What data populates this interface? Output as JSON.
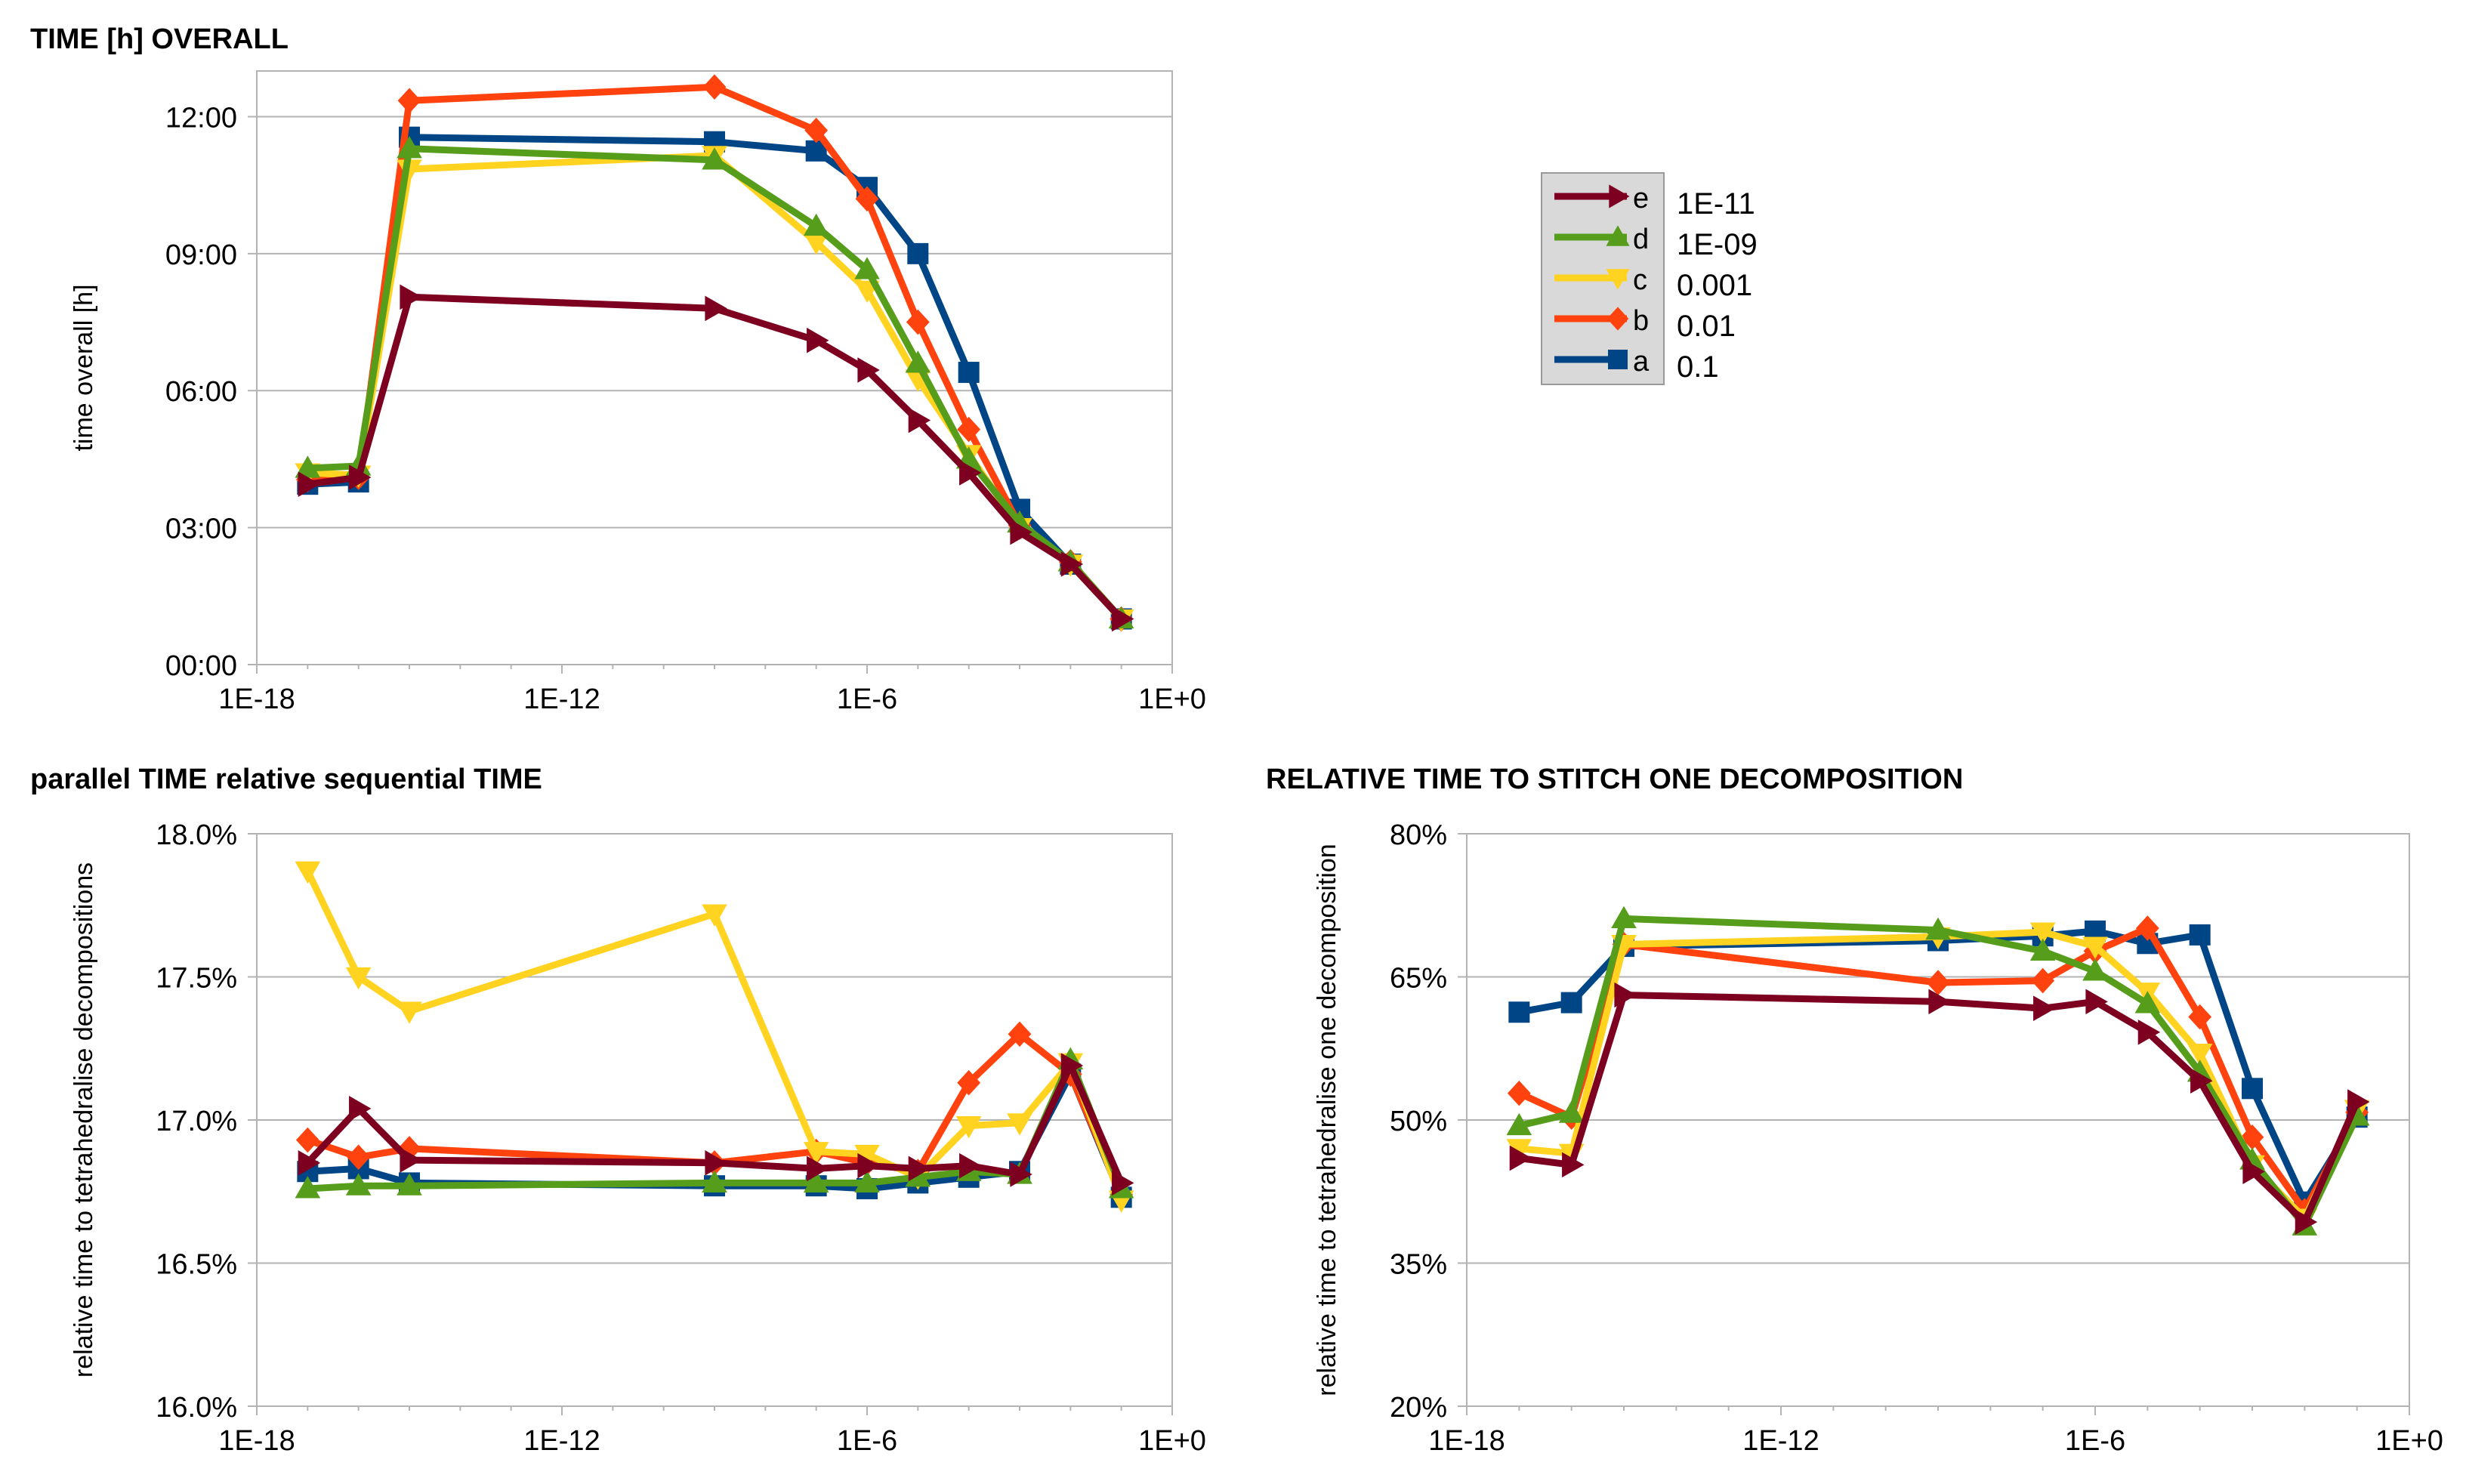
{
  "chart_data": [
    {
      "type": "line",
      "title": "TIME [h] OVERALL",
      "xlabel": "",
      "ylabel": "time overall [h]",
      "xscale": "log",
      "xlim": [
        1e-18,
        1
      ],
      "ylim": [
        0,
        13
      ],
      "xticks": [
        "1E-18",
        "1E-12",
        "1E-6",
        "1E+0"
      ],
      "yticks": [
        "00:00",
        "03:00",
        "06:00",
        "09:00",
        "12:00"
      ],
      "ytick_values": [
        0,
        3,
        6,
        9,
        12
      ],
      "series": [
        {
          "name": "a",
          "x": [
            1e-17,
            1e-16,
            1e-15,
            1e-09,
            1e-07,
            1e-06,
            1e-05,
            0.0001,
            0.001,
            0.01,
            0.1
          ],
          "values": [
            3.95,
            4.0,
            11.55,
            11.45,
            11.25,
            10.45,
            9.0,
            6.4,
            3.4,
            2.2,
            1.0
          ]
        },
        {
          "name": "b",
          "x": [
            1e-17,
            1e-16,
            1e-15,
            1e-09,
            1e-07,
            1e-06,
            1e-05,
            0.0001,
            0.001,
            0.01,
            0.1
          ],
          "values": [
            4.05,
            4.1,
            12.35,
            12.65,
            11.7,
            10.2,
            7.5,
            5.15,
            3.05,
            2.25,
            1.0
          ]
        },
        {
          "name": "c",
          "x": [
            1e-17,
            1e-16,
            1e-15,
            1e-09,
            1e-07,
            1e-06,
            1e-05,
            0.0001,
            0.001,
            0.01,
            0.1
          ],
          "values": [
            4.2,
            4.15,
            10.85,
            11.15,
            9.25,
            8.2,
            6.25,
            4.6,
            3.0,
            2.2,
            1.0
          ]
        },
        {
          "name": "d",
          "x": [
            1e-17,
            1e-16,
            1e-15,
            1e-09,
            1e-07,
            1e-06,
            1e-05,
            0.0001,
            0.001,
            0.01,
            0.1
          ],
          "values": [
            4.3,
            4.35,
            11.3,
            11.05,
            9.6,
            8.65,
            6.6,
            4.5,
            3.1,
            2.25,
            1.0
          ]
        },
        {
          "name": "e",
          "x": [
            1e-17,
            1e-16,
            1e-15,
            1e-09,
            1e-07,
            1e-06,
            1e-05,
            0.0001,
            0.001,
            0.01,
            0.1
          ],
          "values": [
            3.95,
            4.1,
            8.05,
            7.8,
            7.1,
            6.45,
            5.35,
            4.2,
            2.9,
            2.2,
            1.0
          ]
        }
      ]
    },
    {
      "type": "line",
      "title": "parallel TIME relative sequential TIME",
      "xlabel": "",
      "ylabel": "relative time to tetrahedralise decompositions",
      "xscale": "log",
      "xlim": [
        1e-18,
        1
      ],
      "ylim": [
        16.0,
        18.0
      ],
      "xticks": [
        "1E-18",
        "1E-12",
        "1E-6",
        "1E+0"
      ],
      "yticks": [
        "16.0%",
        "16.5%",
        "17.0%",
        "17.5%",
        "18.0%"
      ],
      "ytick_values": [
        16.0,
        16.5,
        17.0,
        17.5,
        18.0
      ],
      "series": [
        {
          "name": "a",
          "x": [
            1e-17,
            1e-16,
            1e-15,
            1e-09,
            1e-07,
            1e-06,
            1e-05,
            0.0001,
            0.001,
            0.01,
            0.1
          ],
          "values": [
            16.82,
            16.83,
            16.78,
            16.77,
            16.77,
            16.76,
            16.78,
            16.8,
            16.82,
            17.16,
            16.73
          ]
        },
        {
          "name": "b",
          "x": [
            1e-17,
            1e-16,
            1e-15,
            1e-09,
            1e-07,
            1e-06,
            1e-05,
            0.0001,
            0.001,
            0.01,
            0.1
          ],
          "values": [
            16.93,
            16.87,
            16.9,
            16.85,
            16.89,
            16.85,
            16.82,
            17.13,
            17.3,
            17.16,
            16.74
          ]
        },
        {
          "name": "c",
          "x": [
            1e-17,
            1e-16,
            1e-15,
            1e-09,
            1e-07,
            1e-06,
            1e-05,
            0.0001,
            0.001,
            0.01,
            0.1
          ],
          "values": [
            17.87,
            17.5,
            17.38,
            17.72,
            16.89,
            16.88,
            16.8,
            16.98,
            16.99,
            17.2,
            16.72
          ]
        },
        {
          "name": "d",
          "x": [
            1e-17,
            1e-16,
            1e-15,
            1e-09,
            1e-07,
            1e-06,
            1e-05,
            0.0001,
            0.001,
            0.01,
            0.1
          ],
          "values": [
            16.76,
            16.77,
            16.77,
            16.78,
            16.78,
            16.78,
            16.8,
            16.82,
            16.81,
            17.21,
            16.76
          ]
        },
        {
          "name": "e",
          "x": [
            1e-17,
            1e-16,
            1e-15,
            1e-09,
            1e-07,
            1e-06,
            1e-05,
            0.0001,
            0.001,
            0.01,
            0.1
          ],
          "values": [
            16.85,
            17.04,
            16.86,
            16.85,
            16.83,
            16.84,
            16.83,
            16.84,
            16.81,
            17.19,
            16.78
          ]
        }
      ]
    },
    {
      "type": "line",
      "title": "RELATIVE TIME TO STITCH ONE DECOMPOSITION",
      "xlabel": "",
      "ylabel": "relative time to  tetrahedralise one decomposition",
      "xscale": "log",
      "xlim": [
        1e-18,
        1
      ],
      "ylim": [
        20,
        80
      ],
      "xticks": [
        "1E-18",
        "1E-12",
        "1E-6",
        "1E+0"
      ],
      "yticks": [
        "20%",
        "35%",
        "50%",
        "65%",
        "80%"
      ],
      "ytick_values": [
        20,
        35,
        50,
        65,
        80
      ],
      "series": [
        {
          "name": "a",
          "x": [
            1e-17,
            1e-16,
            1e-15,
            1e-09,
            1e-07,
            1e-06,
            1e-05,
            0.0001,
            0.001,
            0.01,
            0.1
          ],
          "values": [
            61.3,
            62.3,
            68.2,
            68.8,
            69.3,
            69.8,
            68.5,
            69.4,
            53.3,
            41.4,
            50.3
          ]
        },
        {
          "name": "b",
          "x": [
            1e-17,
            1e-16,
            1e-15,
            1e-09,
            1e-07,
            1e-06,
            1e-05,
            0.0001,
            0.001,
            0.01,
            0.1
          ],
          "values": [
            52.8,
            50.3,
            68.4,
            64.4,
            64.6,
            67.7,
            70.1,
            60.8,
            48.2,
            40.5,
            50.8
          ]
        },
        {
          "name": "c",
          "x": [
            1e-17,
            1e-16,
            1e-15,
            1e-09,
            1e-07,
            1e-06,
            1e-05,
            0.0001,
            0.001,
            0.01,
            0.1
          ],
          "values": [
            47.0,
            46.5,
            68.4,
            69.2,
            69.7,
            68.2,
            63.4,
            57.0,
            45.3,
            39.7,
            51.1
          ]
        },
        {
          "name": "d",
          "x": [
            1e-17,
            1e-16,
            1e-15,
            1e-09,
            1e-07,
            1e-06,
            1e-05,
            0.0001,
            0.001,
            0.01,
            0.1
          ],
          "values": [
            49.4,
            50.7,
            71.1,
            69.9,
            67.7,
            65.6,
            62.2,
            55.0,
            45.8,
            38.9,
            50.4
          ]
        },
        {
          "name": "e",
          "x": [
            1e-17,
            1e-16,
            1e-15,
            1e-09,
            1e-07,
            1e-06,
            1e-05,
            0.0001,
            0.001,
            0.01,
            0.1
          ],
          "values": [
            46.0,
            45.3,
            63.1,
            62.4,
            61.7,
            62.4,
            59.2,
            54.1,
            44.6,
            39.3,
            51.9
          ]
        }
      ]
    }
  ],
  "series_styles": {
    "a": {
      "color": "#004586",
      "marker": "square"
    },
    "b": {
      "color": "#ff420e",
      "marker": "diamond"
    },
    "c": {
      "color": "#ffd320",
      "marker": "triangle-down"
    },
    "d": {
      "color": "#579d1c",
      "marker": "triangle-up"
    },
    "e": {
      "color": "#7e0021",
      "marker": "triangle-right"
    }
  },
  "legend": {
    "entries": [
      {
        "series": "e",
        "label": "e",
        "value": "1E-11"
      },
      {
        "series": "d",
        "label": "d",
        "value": "1E-09"
      },
      {
        "series": "c",
        "label": "c",
        "value": "0.001"
      },
      {
        "series": "b",
        "label": "b",
        "value": "0.01"
      },
      {
        "series": "a",
        "label": "a",
        "value": "0.1"
      }
    ]
  }
}
